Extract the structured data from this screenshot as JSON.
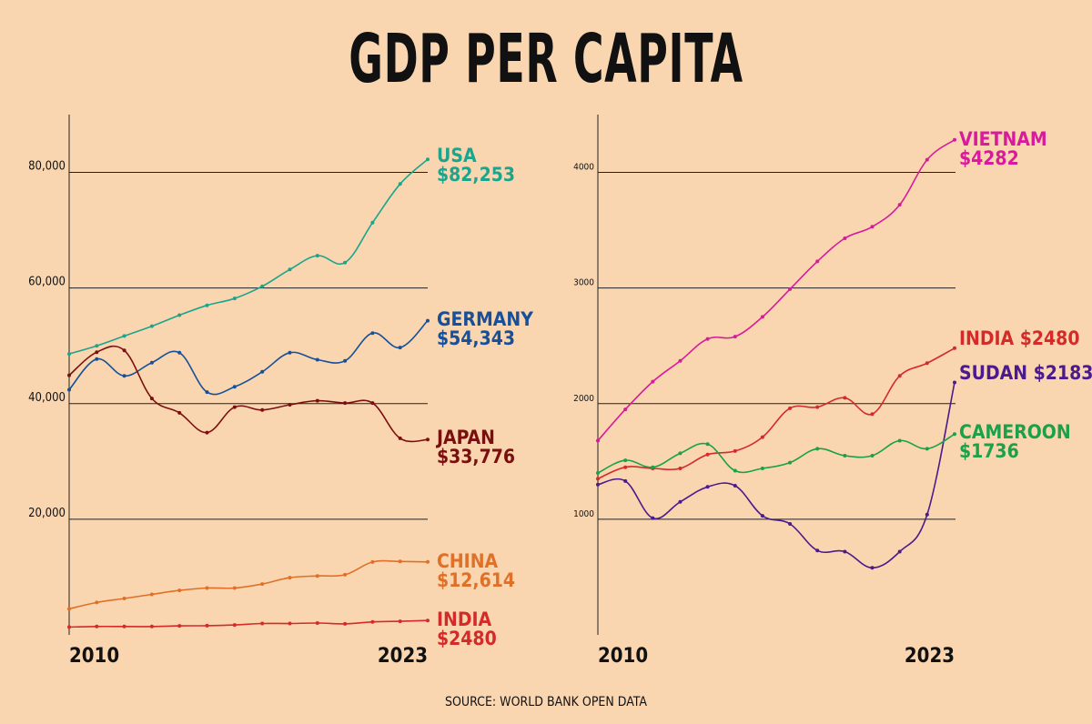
{
  "title": "GDP PER CAPITA",
  "source": "SOURCE: WORLD BANK OPEN DATA",
  "colors": {
    "background": "#f9d6b0",
    "grid": "#222222"
  },
  "chart_data": [
    {
      "type": "line",
      "x": [
        2010,
        2011,
        2012,
        2013,
        2014,
        2015,
        2016,
        2017,
        2018,
        2019,
        2020,
        2021,
        2022,
        2023
      ],
      "x_tick_labels": [
        "2010",
        "2023"
      ],
      "ylim": [
        0,
        90000
      ],
      "y_ticks": [
        20000,
        40000,
        60000,
        80000
      ],
      "y_tick_labels": [
        "20,000",
        "40,000",
        "60,000",
        "80,000"
      ],
      "grid": true,
      "series": [
        {
          "name": "USA",
          "value_label": "$82,253",
          "color": "#1aa58c",
          "values": [
            48600,
            50000,
            51700,
            53400,
            55300,
            57000,
            58200,
            60300,
            63200,
            65600,
            64400,
            71300,
            78000,
            82253
          ]
        },
        {
          "name": "GERMANY",
          "value_label": "$54,343",
          "color": "#17509a",
          "values": [
            42400,
            47700,
            44800,
            47100,
            48800,
            42000,
            42900,
            45500,
            48800,
            47600,
            47400,
            52200,
            49700,
            54343
          ]
        },
        {
          "name": "JAPAN",
          "value_label": "$33,776",
          "color": "#7b0f0f",
          "values": [
            44900,
            48900,
            49200,
            40900,
            38400,
            35000,
            39400,
            38900,
            39800,
            40500,
            40100,
            40100,
            34000,
            33776
          ]
        },
        {
          "name": "CHINA",
          "value_label": "$12,614",
          "color": "#e07027",
          "values": [
            4500,
            5600,
            6300,
            7000,
            7700,
            8100,
            8100,
            8800,
            9900,
            10200,
            10400,
            12600,
            12700,
            12614
          ]
        },
        {
          "name": "INDIA",
          "value_label": "$2480",
          "color": "#d42a2a",
          "values": [
            1350,
            1450,
            1440,
            1440,
            1560,
            1590,
            1710,
            1960,
            1970,
            2050,
            1910,
            2240,
            2350,
            2480
          ]
        }
      ]
    },
    {
      "type": "line",
      "x": [
        2010,
        2011,
        2012,
        2013,
        2014,
        2015,
        2016,
        2017,
        2018,
        2019,
        2020,
        2021,
        2022,
        2023
      ],
      "x_tick_labels": [
        "2010",
        "2023"
      ],
      "ylim": [
        0,
        4500
      ],
      "y_ticks": [
        1000,
        2000,
        3000,
        4000
      ],
      "y_tick_labels": [
        "1000",
        "2000",
        "3000",
        "4000"
      ],
      "grid": true,
      "series": [
        {
          "name": "VIETNAM",
          "value_label": "$4282",
          "color": "#d81b9b",
          "values": [
            1680,
            1950,
            2190,
            2370,
            2560,
            2580,
            2750,
            2990,
            3230,
            3430,
            3530,
            3720,
            4110,
            4282
          ]
        },
        {
          "name": "INDIA",
          "value_label": "$2480",
          "color": "#d42a2a",
          "values": [
            1350,
            1450,
            1440,
            1440,
            1560,
            1590,
            1710,
            1960,
            1970,
            2050,
            1910,
            2240,
            2350,
            2480
          ]
        },
        {
          "name": "SUDAN",
          "value_label": "$2183",
          "color": "#4b1a8c",
          "values": [
            1300,
            1330,
            1010,
            1150,
            1280,
            1290,
            1030,
            960,
            730,
            720,
            580,
            720,
            1040,
            2183
          ]
        },
        {
          "name": "CAMEROON",
          "value_label": "$1736",
          "color": "#1aa14a",
          "values": [
            1400,
            1510,
            1450,
            1570,
            1650,
            1420,
            1440,
            1490,
            1610,
            1550,
            1550,
            1680,
            1610,
            1736
          ]
        }
      ]
    }
  ]
}
